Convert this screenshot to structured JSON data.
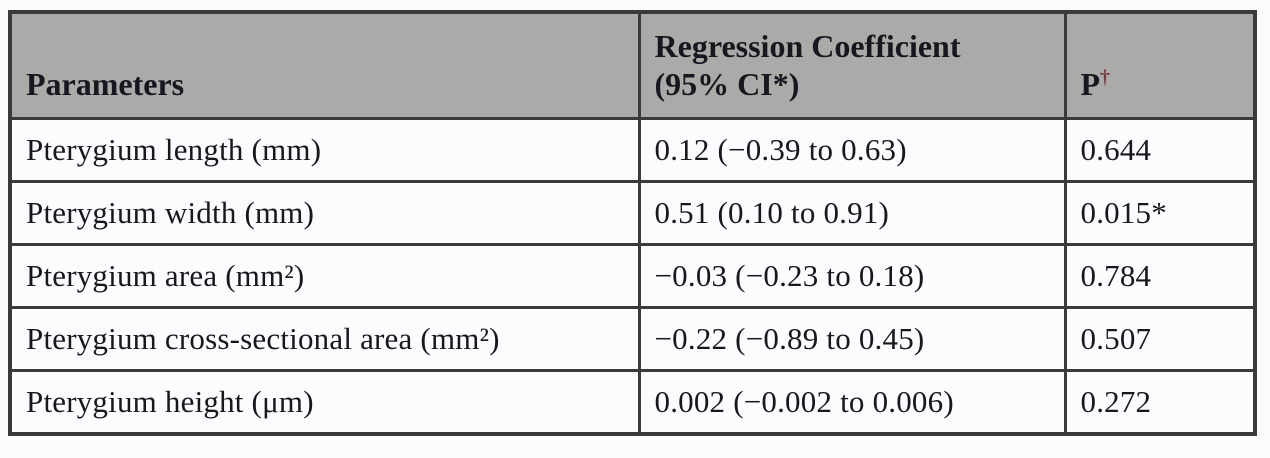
{
  "colors": {
    "page_bg": "#fbfafc",
    "header_bg": "#acaaa8",
    "body_bg": "#fcfbfd",
    "border": "#3a393b",
    "text": "#17171f",
    "dagger": "#6f3a3d"
  },
  "table": {
    "headers": {
      "parameters": "Parameters",
      "coefficient_line1": "Regression Coefficient",
      "coefficient_line2": "(95% CI*)",
      "p_label": "P",
      "p_superscript": "†"
    },
    "rows": [
      {
        "parameter": "Pterygium length (mm)",
        "coefficient": "0.12 (−0.39 to 0.63)",
        "p": "0.644"
      },
      {
        "parameter": "Pterygium width (mm)",
        "coefficient": "0.51 (0.10 to 0.91)",
        "p": "0.015*"
      },
      {
        "parameter": "Pterygium area (mm²)",
        "coefficient": "−0.03 (−0.23 to 0.18)",
        "p": "0.784"
      },
      {
        "parameter": "Pterygium cross-sectional area (mm²)",
        "coefficient": "−0.22 (−0.89 to 0.45)",
        "p": "0.507"
      },
      {
        "parameter": "Pterygium height (μm)",
        "coefficient": "0.002 (−0.002 to 0.006)",
        "p": "0.272"
      }
    ]
  }
}
